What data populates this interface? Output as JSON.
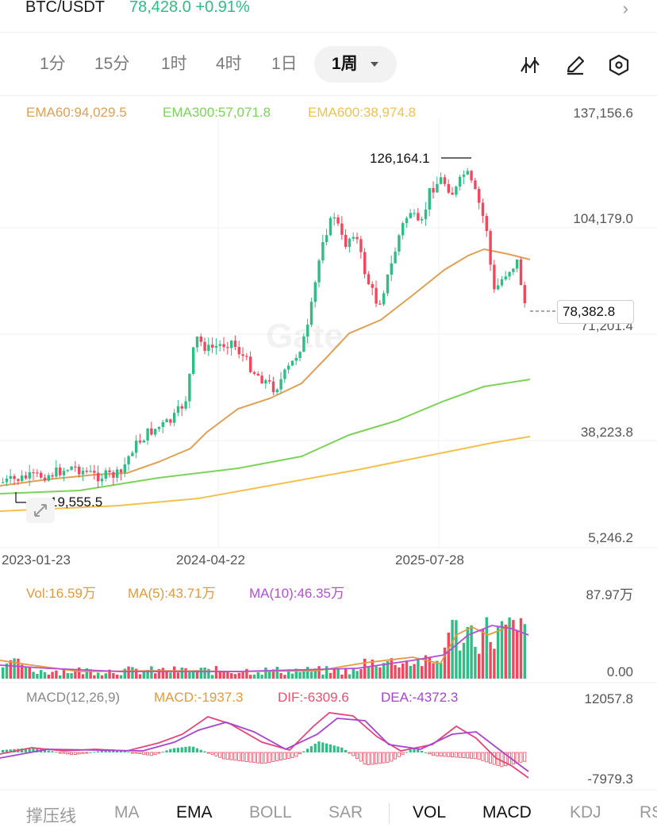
{
  "ticker": {
    "symbol": "BTC/USDT",
    "price_change": "78,428.0 +0.91%"
  },
  "timeframes": [
    "1分",
    "15分",
    "1时",
    "4时",
    "1日"
  ],
  "active_timeframe": "1周",
  "main_chart": {
    "ema60_label": "EMA60:94,029.5",
    "ema300_label": "EMA300:57,071.8",
    "ema600_label": "EMA600:38,974.8",
    "y_ticks": [
      "137,156.6",
      "104,179.0",
      "71,201.4",
      "38,223.8",
      "5,246.2"
    ],
    "x_ticks": [
      "2023-01-23",
      "2024-04-22",
      "2025-07-28"
    ],
    "high_marker": "126,164.1",
    "low_marker": "19,555.5",
    "current_price": "78,382.8",
    "watermark": "Gate"
  },
  "volume": {
    "vol_label": "Vol:16.59万",
    "ma5_label": "MA(5):43.71万",
    "ma10_label": "MA(10):46.35万",
    "y_max": "87.97万",
    "y_min": "0.00"
  },
  "macd": {
    "title": "MACD(12,26,9)",
    "macd_label": "MACD:-1937.3",
    "dif_label": "DIF:-6309.6",
    "dea_label": "DEA:-4372.3",
    "y_max": "12057.8",
    "y_min": "-7979.3"
  },
  "bottom_tabs": [
    "撑压线",
    "MA",
    "EMA",
    "BOLL",
    "SAR",
    "VOL",
    "MACD",
    "KDJ",
    "RS"
  ],
  "colors": {
    "up": "#2ebd85",
    "down": "#f6465d",
    "ema60": "#e0a055",
    "ema300": "#7dd35a",
    "ema600": "#f2c14e",
    "ma10": "#b44fd3",
    "macd_label": "#e39a3a",
    "dif_label": "#f0506e",
    "dea_label": "#a844d0"
  }
}
